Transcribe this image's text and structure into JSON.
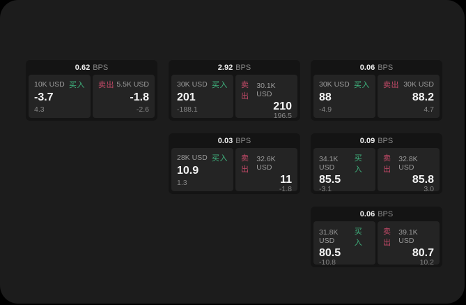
{
  "labels": {
    "bps_unit": "BPS",
    "buy": "买入",
    "sell": "卖出"
  },
  "colors": {
    "buy_green": "#3fb27d",
    "sell_red": "#c44a68",
    "panel_bg": "#1c1c1c",
    "card_bg": "#141414",
    "tile_bg": "#242424"
  },
  "cards": [
    {
      "bps": "0.62",
      "buy": {
        "amount": "10K USD",
        "value": "-3.7",
        "sub_value": "4.3"
      },
      "sell": {
        "amount": "5.5K USD",
        "value": "-1.8",
        "sub_value": "-2.6"
      }
    },
    {
      "bps": "2.92",
      "buy": {
        "amount": "30K USD",
        "value": "201",
        "sub_value": "-188.1"
      },
      "sell": {
        "amount": "30.1K USD",
        "value": "210",
        "sub_value": "196.5"
      }
    },
    {
      "bps": "0.06",
      "buy": {
        "amount": "30K USD",
        "value": "88",
        "sub_value": "-4.9"
      },
      "sell": {
        "amount": "30K USD",
        "value": "88.2",
        "sub_value": "4.7"
      }
    },
    {
      "bps": "0.03",
      "buy": {
        "amount": "28K USD",
        "value": "10.9",
        "sub_value": "1.3"
      },
      "sell": {
        "amount": "32.6K USD",
        "value": "11",
        "sub_value": "-1.8"
      }
    },
    {
      "bps": "0.09",
      "buy": {
        "amount": "34.1K USD",
        "value": "85.5",
        "sub_value": "-3.1"
      },
      "sell": {
        "amount": "32.8K USD",
        "value": "85.8",
        "sub_value": "3.0"
      }
    },
    {
      "bps": "0.06",
      "buy": {
        "amount": "31.8K USD",
        "value": "80.5",
        "sub_value": "-10.8"
      },
      "sell": {
        "amount": "39.1K USD",
        "value": "80.7",
        "sub_value": "10.2"
      }
    }
  ]
}
